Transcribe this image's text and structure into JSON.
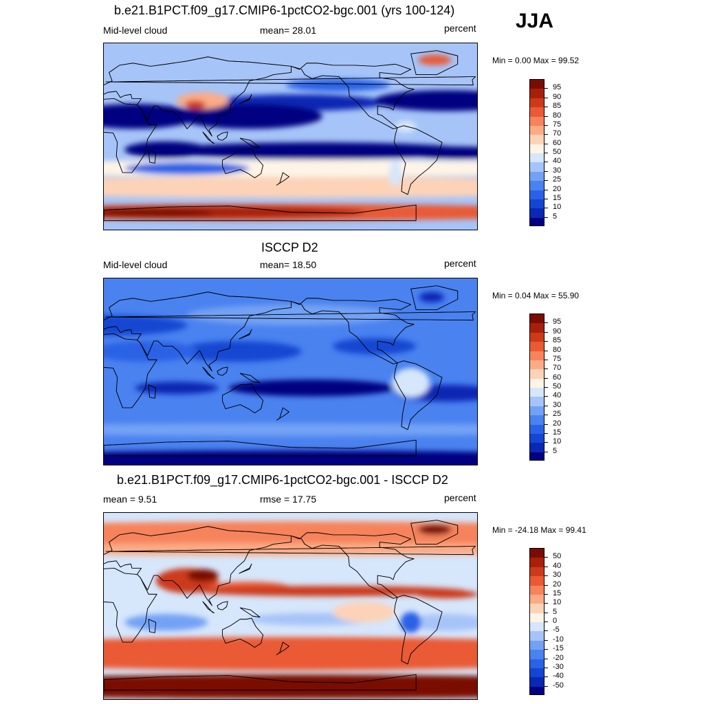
{
  "season": "JJA",
  "panels": [
    {
      "title": "b.e21.B1PCT.f09_g17.CMIP6-1pctCO2-bgc.001 (yrs 100-124)",
      "left_label": "Mid-level cloud",
      "center_label": "mean=  28.01",
      "units": "percent",
      "minmax": "Min =   0.00 Max =  99.52",
      "colorbar_labels": [
        "95",
        "90",
        "85",
        "80",
        "75",
        "70",
        "60",
        "50",
        "40",
        "30",
        "25",
        "20",
        "15",
        "10",
        "5"
      ]
    },
    {
      "title": "ISCCP D2",
      "left_label": "Mid-level cloud",
      "center_label": "mean=  18.50",
      "units": "percent",
      "minmax": "Min =   0.04 Max =  55.90",
      "colorbar_labels": [
        "95",
        "90",
        "85",
        "80",
        "75",
        "70",
        "60",
        "50",
        "40",
        "30",
        "25",
        "20",
        "15",
        "10",
        "5"
      ]
    },
    {
      "title": "b.e21.B1PCT.f09_g17.CMIP6-1pctCO2-bgc.001 - ISCCP D2",
      "left_label": "mean =   9.51",
      "center_label": "rmse =  17.75",
      "units": "percent",
      "minmax": "Min = -24.18 Max =  99.41",
      "colorbar_labels": [
        "50",
        "40",
        "30",
        "20",
        "15",
        "10",
        "5",
        "0",
        "-5",
        "-10",
        "-15",
        "-20",
        "-30",
        "-40",
        "-50"
      ]
    }
  ],
  "colors": {
    "scale": [
      "#000080",
      "#0a28b4",
      "#1446d2",
      "#2a62e6",
      "#4a82f0",
      "#73a2f5",
      "#a6c4f8",
      "#d6e6fb",
      "#fff4e6",
      "#fdd3b8",
      "#fbab86",
      "#f6835c",
      "#e95a35",
      "#cc3a1a",
      "#a8200c",
      "#7a0d02"
    ]
  }
}
